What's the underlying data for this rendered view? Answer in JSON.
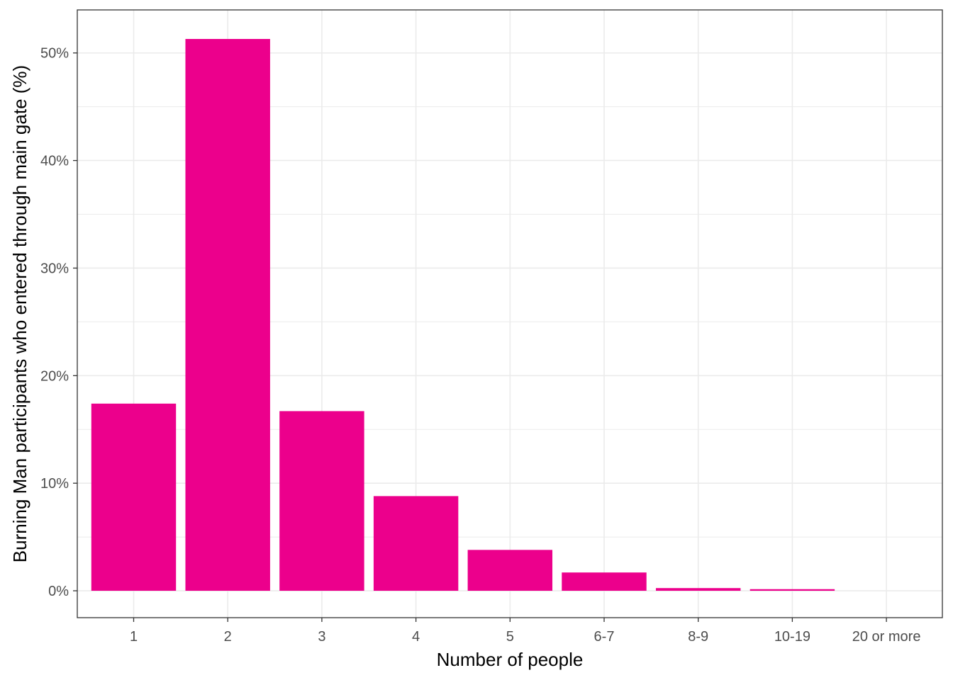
{
  "chart_data": {
    "type": "bar",
    "title": "",
    "xlabel": "Number of people",
    "ylabel": "Burning Man participants who entered through main gate (%)",
    "categories": [
      "1",
      "2",
      "3",
      "4",
      "5",
      "6-7",
      "8-9",
      "10-19",
      "20 or more"
    ],
    "values": [
      17.4,
      51.3,
      16.7,
      8.8,
      3.8,
      1.7,
      0.25,
      0.15,
      0.0
    ],
    "ylim": [
      -2.5,
      54
    ],
    "y_ticks": [
      0,
      10,
      20,
      30,
      40,
      50
    ],
    "y_tick_labels": [
      "0%",
      "10%",
      "20%",
      "30%",
      "40%",
      "50%"
    ],
    "grid": true,
    "legend": "none",
    "colors": {
      "bar": "#EC008C",
      "grid": "#ebebeb",
      "panel_border": "#333333",
      "tick_text": "#4d4d4d"
    }
  }
}
